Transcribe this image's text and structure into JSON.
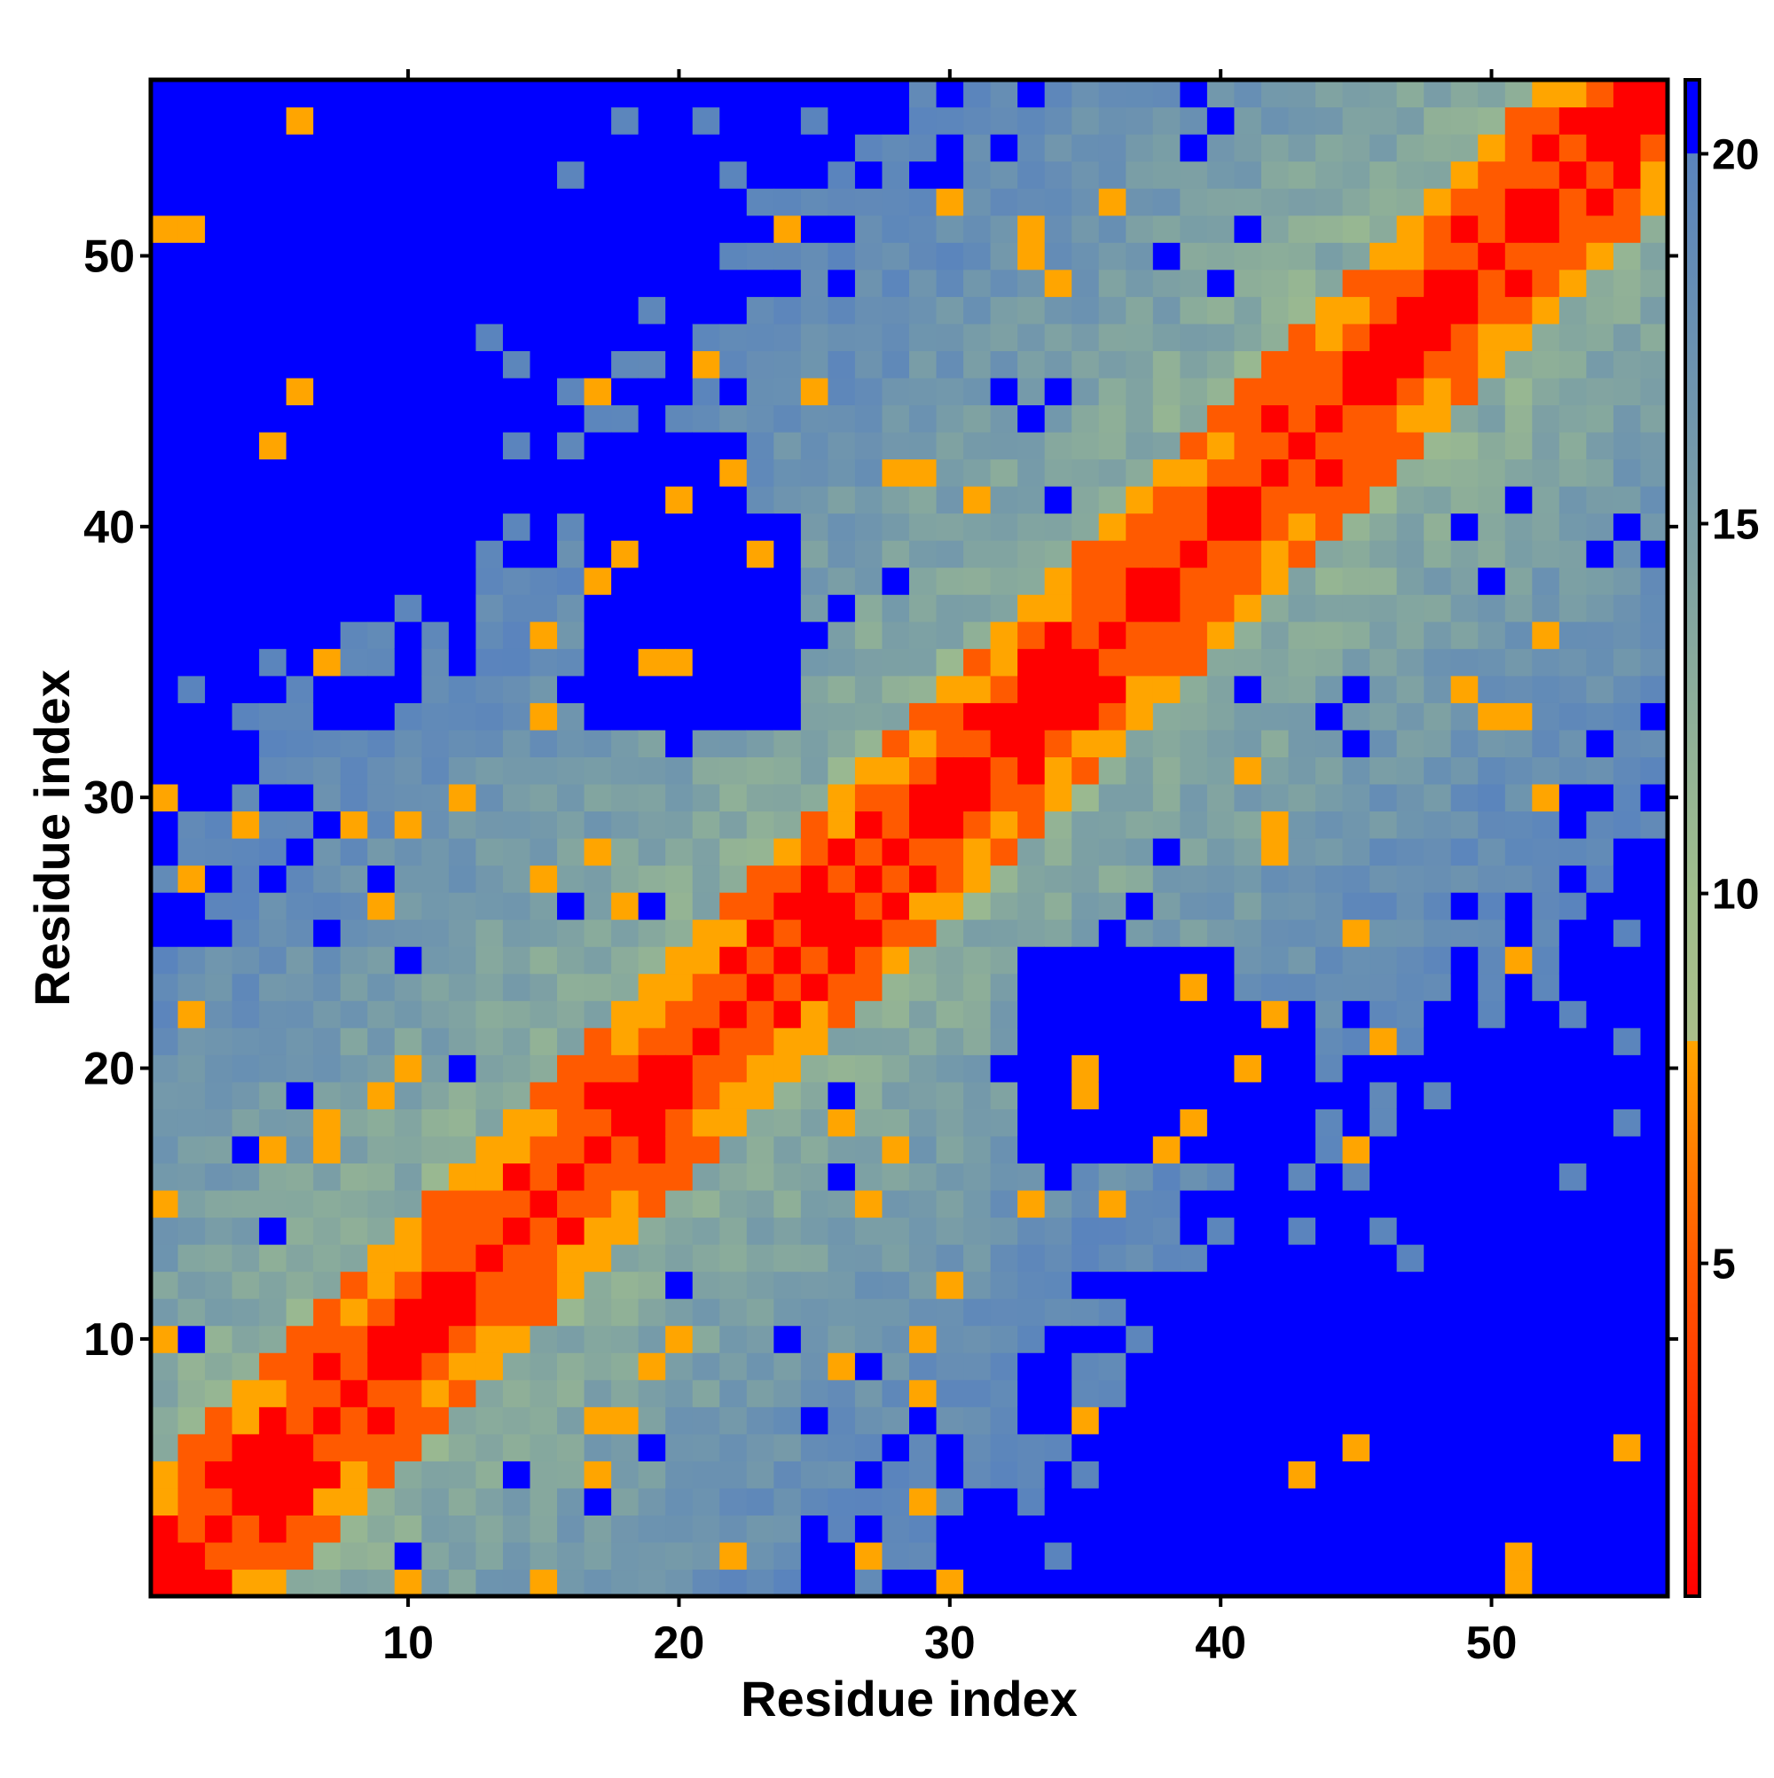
{
  "chart_data": {
    "type": "heatmap",
    "title": "",
    "xlabel": "Residue index",
    "ylabel": "Residue index",
    "n": 56,
    "xlim": [
      0.5,
      56.5
    ],
    "ylim": [
      0.5,
      56.5
    ],
    "x_ticks": [
      10,
      20,
      30,
      40,
      50
    ],
    "y_ticks": [
      10,
      20,
      30,
      40,
      50
    ],
    "colorbar": {
      "range": [
        0.5,
        21
      ],
      "ticks": [
        5,
        10,
        15,
        20
      ],
      "stops": [
        {
          "value": 0.5,
          "color": "#ff0000"
        },
        {
          "value": 5,
          "color": "#ff5a00"
        },
        {
          "value": 8,
          "color": "#ffa500"
        },
        {
          "value": 8.01,
          "color": "#aabf8a"
        },
        {
          "value": 10,
          "color": "#a0be8c"
        },
        {
          "value": 15,
          "color": "#7a9ea6"
        },
        {
          "value": 20,
          "color": "#5a84bd"
        },
        {
          "value": 20.01,
          "color": "#0000ff"
        },
        {
          "value": 21,
          "color": "#0000ff"
        }
      ]
    },
    "legend": "colorbar right",
    "values_description_note": "",
    "matrix_model": {
      "diagonal_band_width": 2.2,
      "orange_band_width": 4.2,
      "far_threshold": 20
    }
  }
}
